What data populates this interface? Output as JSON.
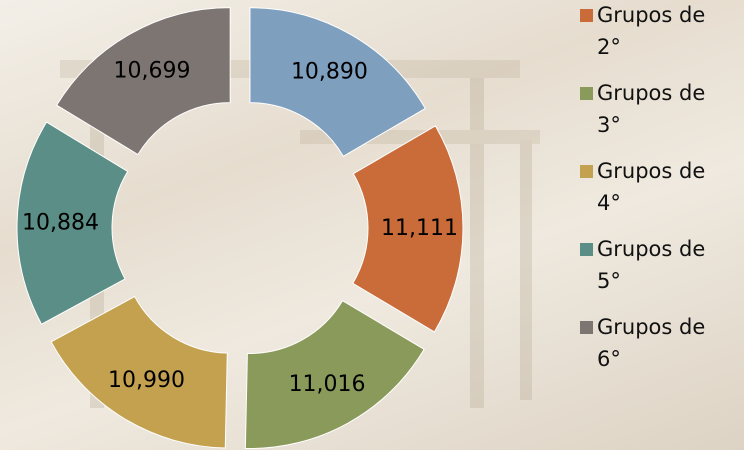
{
  "chart_data": {
    "type": "pie",
    "categories": [
      null,
      "Grupos de 2°",
      "Grupos de 3°",
      "Grupos de 4°",
      "Grupos de 5°",
      "Grupos de 6°"
    ],
    "values": [
      10890,
      11111,
      11016,
      10990,
      10884,
      10699
    ],
    "value_labels": [
      "10,890",
      "11,111",
      "11,016",
      "10,990",
      "10,884",
      "10,699"
    ],
    "colors": [
      "#7f9fbf",
      "#c96c3a",
      "#8a9a5b",
      "#c4a14f",
      "#5b8e86",
      "#7d7572"
    ]
  }
}
